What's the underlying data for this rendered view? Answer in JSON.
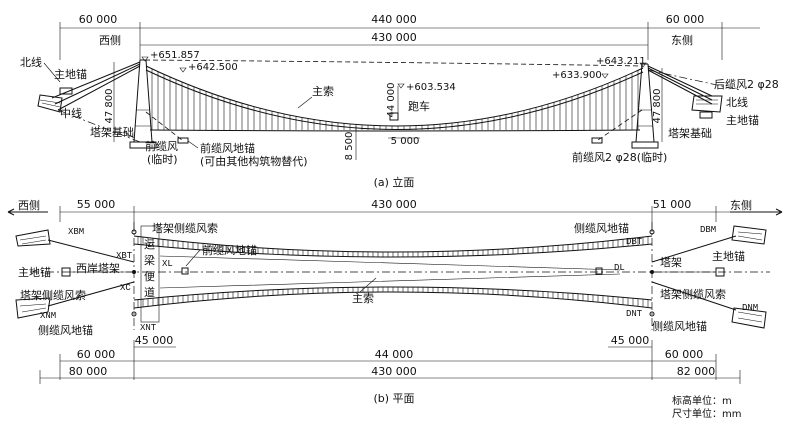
{
  "elevation": {
    "dims_top": [
      "60 000",
      "440 000",
      "60 000"
    ],
    "dim_430": "430 000",
    "west_side": "西侧",
    "east_side": "东侧",
    "elevations": [
      "+651.857",
      "+642.500",
      "+603.534",
      "+643.211",
      "+633.900"
    ],
    "labels": {
      "north_line_left": "北线",
      "main_anchor_left": "主地锚",
      "middle_line": "中线",
      "tower_found_left": "塔架基础",
      "front_wind": "前缆风",
      "temporary": "(临时)",
      "front_wind_anchor": "前缆风地锚",
      "replaceable": "(可由其他构筑物替代)",
      "main_cable": "主索",
      "trolley": "跑车",
      "rear_wind": "后缆风2 φ28",
      "north_line_right": "北线",
      "tower_found_right": "塔架基础",
      "main_anchor_right": "主地锚",
      "front_wind_right": "前缆风2 φ28(临时)"
    },
    "vertical_dims": [
      "47 800",
      "44 000",
      "8 500",
      "47 800"
    ],
    "dim_5000": "5 000",
    "caption": "(a)  立面"
  },
  "plan": {
    "dims_top": [
      "55 000",
      "430 000",
      "51 000"
    ],
    "west_side": "西侧",
    "east_side": "东侧",
    "codes": [
      "XBM",
      "XBT",
      "XC",
      "XL",
      "XNM",
      "XNT",
      "DBM",
      "DBT",
      "DL",
      "DNT",
      "DNM"
    ],
    "labels": {
      "tower_side_wind": "塔架侧缆风索",
      "front_wind_anchor": "前缆风地锚",
      "main_anchor_left": "主地锚",
      "west_tower": "西岸塔架",
      "tower_side_wind_cable": "塔架侧缆风索",
      "side_wind_anchor_left": "侧缆风地锚",
      "beam_vertical": "运梁便道",
      "main_cable": "主索",
      "side_wind_anchor_right_top": "侧缆风地锚",
      "tower": "塔架",
      "main_anchor_right": "主地锚",
      "tower_side_wind_right": "塔架侧缆风索",
      "side_wind_anchor_right_bottom": "侧缆风地锚"
    },
    "dims_inner": [
      "45 000",
      "45 000"
    ],
    "dims_bottom1": [
      "60 000",
      "44 000",
      "60 000"
    ],
    "dims_bottom2": [
      "80 000",
      "430 000",
      "82 000"
    ],
    "caption": "(b)  平面",
    "units": [
      "标高单位：m",
      "尺寸单位：mm"
    ]
  }
}
